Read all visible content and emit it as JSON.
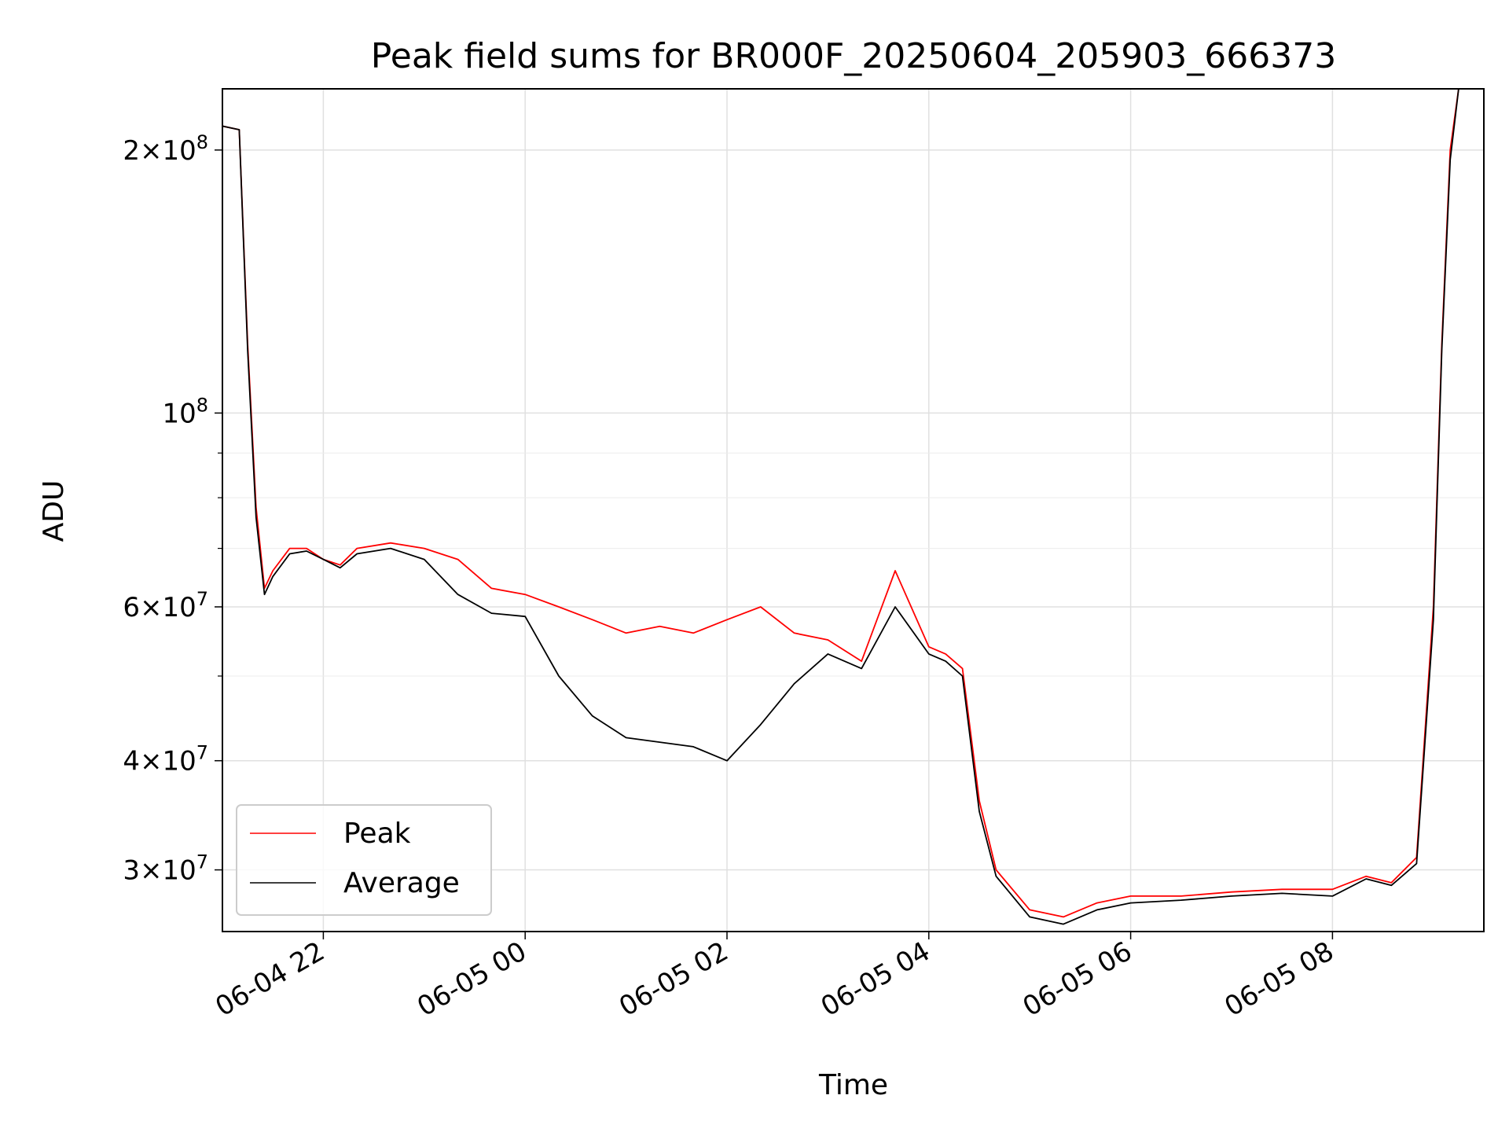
{
  "chart_data": {
    "type": "line",
    "title": "Peak field sums for BR000F_20250604_205903_666373",
    "xlabel": "Time",
    "ylabel": "ADU",
    "y_scale": "log",
    "ylim": [
      25500000,
      235000000
    ],
    "xlim": [
      "2025-06-04 21:00",
      "2025-06-05 09:30"
    ],
    "grid": true,
    "legend_position": "lower-left",
    "x_ticks": [
      "06-04 22",
      "06-05 00",
      "06-05 02",
      "06-05 04",
      "06-05 06",
      "06-05 08"
    ],
    "x_tick_times": [
      "2025-06-04 22:00",
      "2025-06-05 00:00",
      "2025-06-05 02:00",
      "2025-06-05 04:00",
      "2025-06-05 06:00",
      "2025-06-05 08:00"
    ],
    "y_ticks": [
      {
        "value": 30000000,
        "mant": "3",
        "exp": "7"
      },
      {
        "value": 40000000,
        "mant": "4",
        "exp": "7"
      },
      {
        "value": 60000000,
        "mant": "6",
        "exp": "7"
      },
      {
        "value": 100000000,
        "mant": "",
        "exp": "8"
      },
      {
        "value": 200000000,
        "mant": "2",
        "exp": "8"
      }
    ],
    "y_minor_ticks": [
      50000000,
      70000000,
      80000000,
      90000000
    ],
    "colors": {
      "peak": "#ff0000",
      "average": "#000000"
    },
    "series": [
      {
        "name": "Peak",
        "color": "#ff0000",
        "x": [
          "2025-06-04 21:00",
          "2025-06-04 21:10",
          "2025-06-04 21:15",
          "2025-06-04 21:20",
          "2025-06-04 21:25",
          "2025-06-04 21:30",
          "2025-06-04 21:40",
          "2025-06-04 21:50",
          "2025-06-04 22:00",
          "2025-06-04 22:10",
          "2025-06-04 22:20",
          "2025-06-04 22:40",
          "2025-06-04 23:00",
          "2025-06-04 23:20",
          "2025-06-04 23:40",
          "2025-06-05 00:00",
          "2025-06-05 00:20",
          "2025-06-05 00:40",
          "2025-06-05 01:00",
          "2025-06-05 01:20",
          "2025-06-05 01:40",
          "2025-06-05 02:00",
          "2025-06-05 02:20",
          "2025-06-05 02:40",
          "2025-06-05 03:00",
          "2025-06-05 03:20",
          "2025-06-05 03:40",
          "2025-06-05 04:00",
          "2025-06-05 04:10",
          "2025-06-05 04:20",
          "2025-06-05 04:30",
          "2025-06-05 04:40",
          "2025-06-05 05:00",
          "2025-06-05 05:20",
          "2025-06-05 05:40",
          "2025-06-05 06:00",
          "2025-06-05 06:30",
          "2025-06-05 07:00",
          "2025-06-05 07:30",
          "2025-06-05 08:00",
          "2025-06-05 08:20",
          "2025-06-05 08:35",
          "2025-06-05 08:50",
          "2025-06-05 09:00",
          "2025-06-05 09:05",
          "2025-06-05 09:10",
          "2025-06-05 09:15",
          "2025-06-05 09:30"
        ],
        "y": [
          213000000,
          211000000,
          120000000,
          78000000,
          63000000,
          66000000,
          70000000,
          70000000,
          68000000,
          67000000,
          70000000,
          71000000,
          70000000,
          68000000,
          63000000,
          62000000,
          60000000,
          58000000,
          56000000,
          57000000,
          56000000,
          58000000,
          60000000,
          56000000,
          55000000,
          52000000,
          66000000,
          54000000,
          53000000,
          51000000,
          36000000,
          30000000,
          27000000,
          26500000,
          27500000,
          28000000,
          28000000,
          28300000,
          28500000,
          28500000,
          29500000,
          29000000,
          31000000,
          60000000,
          120000000,
          200000000,
          235000000,
          235000000
        ]
      },
      {
        "name": "Average",
        "color": "#000000",
        "x": [
          "2025-06-04 21:00",
          "2025-06-04 21:10",
          "2025-06-04 21:15",
          "2025-06-04 21:20",
          "2025-06-04 21:25",
          "2025-06-04 21:30",
          "2025-06-04 21:40",
          "2025-06-04 21:50",
          "2025-06-04 22:00",
          "2025-06-04 22:10",
          "2025-06-04 22:20",
          "2025-06-04 22:40",
          "2025-06-04 23:00",
          "2025-06-04 23:20",
          "2025-06-04 23:40",
          "2025-06-05 00:00",
          "2025-06-05 00:20",
          "2025-06-05 00:40",
          "2025-06-05 01:00",
          "2025-06-05 01:20",
          "2025-06-05 01:40",
          "2025-06-05 02:00",
          "2025-06-05 02:20",
          "2025-06-05 02:40",
          "2025-06-05 03:00",
          "2025-06-05 03:20",
          "2025-06-05 03:40",
          "2025-06-05 04:00",
          "2025-06-05 04:10",
          "2025-06-05 04:20",
          "2025-06-05 04:30",
          "2025-06-05 04:40",
          "2025-06-05 05:00",
          "2025-06-05 05:20",
          "2025-06-05 05:40",
          "2025-06-05 06:00",
          "2025-06-05 06:30",
          "2025-06-05 07:00",
          "2025-06-05 07:30",
          "2025-06-05 08:00",
          "2025-06-05 08:20",
          "2025-06-05 08:35",
          "2025-06-05 08:50",
          "2025-06-05 09:00",
          "2025-06-05 09:05",
          "2025-06-05 09:10",
          "2025-06-05 09:15",
          "2025-06-05 09:30"
        ],
        "y": [
          213000000,
          211000000,
          118000000,
          76000000,
          62000000,
          65000000,
          69000000,
          69500000,
          68000000,
          66500000,
          69000000,
          70000000,
          68000000,
          62000000,
          59000000,
          58500000,
          50000000,
          45000000,
          42500000,
          42000000,
          41500000,
          40000000,
          44000000,
          49000000,
          53000000,
          51000000,
          60000000,
          53000000,
          52000000,
          50000000,
          35000000,
          29500000,
          26500000,
          26000000,
          27000000,
          27500000,
          27700000,
          28000000,
          28200000,
          28000000,
          29300000,
          28800000,
          30500000,
          58000000,
          118000000,
          195000000,
          235000000,
          235000000
        ]
      }
    ]
  }
}
